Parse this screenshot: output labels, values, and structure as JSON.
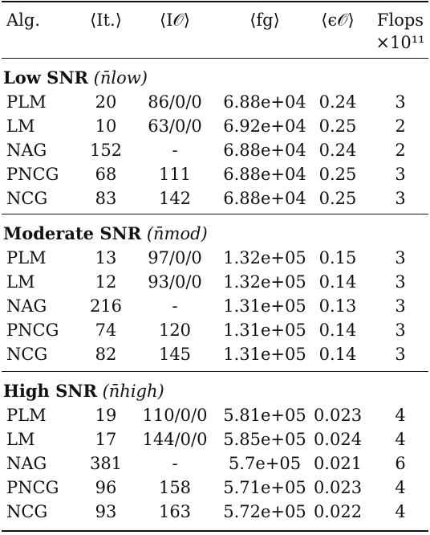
{
  "header": {
    "alg": "Alg.",
    "it": "⟨It.⟩",
    "io": "⟨I𝒪⟩",
    "fg": "⟨fg⟩",
    "eps": "⟨ϵ𝒪⟩",
    "flops": "Flops",
    "flops_unit": "×10¹¹"
  },
  "groups": [
    {
      "label": "Low SNR",
      "paren": "(n̄low)",
      "rows": [
        {
          "alg": "PLM",
          "it": "20",
          "io": "86/0/0",
          "fg": "6.88e+04",
          "eps": "0.24",
          "flops": "3"
        },
        {
          "alg": "LM",
          "it": "10",
          "io": "63/0/0",
          "fg": "6.92e+04",
          "eps": "0.25",
          "flops": "2"
        },
        {
          "alg": "NAG",
          "it": "152",
          "io": "-",
          "fg": "6.88e+04",
          "eps": "0.24",
          "flops": "2"
        },
        {
          "alg": "PNCG",
          "it": "68",
          "io": "111",
          "fg": "6.88e+04",
          "eps": "0.25",
          "flops": "3"
        },
        {
          "alg": "NCG",
          "it": "83",
          "io": "142",
          "fg": "6.88e+04",
          "eps": "0.25",
          "flops": "3"
        }
      ]
    },
    {
      "label": "Moderate SNR",
      "paren": "(n̄mod)",
      "rows": [
        {
          "alg": "PLM",
          "it": "13",
          "io": "97/0/0",
          "fg": "1.32e+05",
          "eps": "0.15",
          "flops": "3"
        },
        {
          "alg": "LM",
          "it": "12",
          "io": "93/0/0",
          "fg": "1.32e+05",
          "eps": "0.14",
          "flops": "3"
        },
        {
          "alg": "NAG",
          "it": "216",
          "io": "-",
          "fg": "1.31e+05",
          "eps": "0.13",
          "flops": "3"
        },
        {
          "alg": "PNCG",
          "it": "74",
          "io": "120",
          "fg": "1.31e+05",
          "eps": "0.14",
          "flops": "3"
        },
        {
          "alg": "NCG",
          "it": "82",
          "io": "145",
          "fg": "1.31e+05",
          "eps": "0.14",
          "flops": "3"
        }
      ]
    },
    {
      "label": "High SNR",
      "paren": "(n̄high)",
      "rows": [
        {
          "alg": "PLM",
          "it": "19",
          "io": "110/0/0",
          "fg": "5.81e+05",
          "eps": "0.023",
          "flops": "4"
        },
        {
          "alg": "LM",
          "it": "17",
          "io": "144/0/0",
          "fg": "5.85e+05",
          "eps": "0.024",
          "flops": "4"
        },
        {
          "alg": "NAG",
          "it": "381",
          "io": "-",
          "fg": "5.7e+05",
          "eps": "0.021",
          "flops": "6"
        },
        {
          "alg": "PNCG",
          "it": "96",
          "io": "158",
          "fg": "5.71e+05",
          "eps": "0.023",
          "flops": "4"
        },
        {
          "alg": "NCG",
          "it": "93",
          "io": "163",
          "fg": "5.72e+05",
          "eps": "0.022",
          "flops": "4"
        }
      ]
    }
  ]
}
